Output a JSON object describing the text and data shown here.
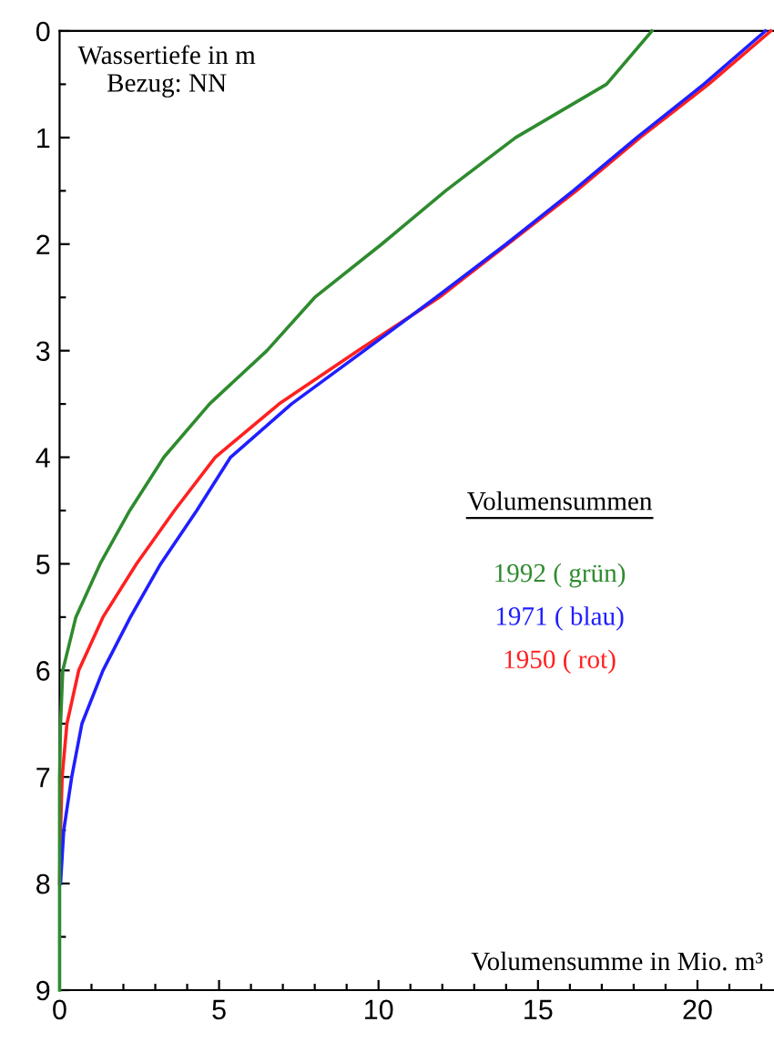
{
  "chart_data": {
    "type": "line",
    "xlabel": "Volumensumme in Mio. m³",
    "ylabel": "Wassertiefe in m\nBezug: NN",
    "legend_title": "Volumensummen",
    "legend": "right",
    "xlim": [
      0,
      22.4
    ],
    "ylim": [
      9,
      0
    ],
    "xticks": [
      0,
      {
        "value": 1,
        "label": null
      },
      {
        "value": 2,
        "label": null
      },
      {
        "value": 3,
        "label": null
      },
      {
        "value": 4,
        "label": null
      },
      5,
      {
        "value": 6,
        "label": null
      },
      {
        "value": 7,
        "label": null
      },
      {
        "value": 8,
        "label": null
      },
      {
        "value": 9,
        "label": null
      },
      10,
      {
        "value": 11,
        "label": null
      },
      {
        "value": 12,
        "label": null
      },
      {
        "value": 13,
        "label": null
      },
      {
        "value": 14,
        "label": null
      },
      15,
      {
        "value": 16,
        "label": null
      },
      {
        "value": 17,
        "label": null
      },
      {
        "value": 18,
        "label": null
      },
      {
        "value": 19,
        "label": null
      },
      20,
      {
        "value": 21,
        "label": null
      },
      {
        "value": 22,
        "label": null
      }
    ],
    "yticks": [
      0,
      {
        "value": 0.5,
        "label": null
      },
      1,
      {
        "value": 1.5,
        "label": null
      },
      2,
      {
        "value": 2.5,
        "label": null
      },
      3,
      {
        "value": 3.5,
        "label": null
      },
      4,
      {
        "value": 4.5,
        "label": null
      },
      5,
      {
        "value": 5.5,
        "label": null
      },
      6,
      {
        "value": 6.5,
        "label": null
      },
      7,
      {
        "value": 7.5,
        "label": null
      },
      8,
      {
        "value": 8.5,
        "label": null
      },
      9
    ],
    "line_style": "solid",
    "series": [
      {
        "name": "1992 ( grün)",
        "color": "#2e8b2e",
        "x": [
          18.57,
          17.15,
          14.3,
          12.1,
          10.1,
          8.0,
          6.5,
          4.7,
          3.27,
          2.2,
          1.27,
          0.51,
          0.1,
          0.03,
          0,
          0,
          0,
          0,
          0
        ],
        "values": [
          0,
          0.5,
          1,
          1.5,
          2,
          2.5,
          3,
          3.5,
          4,
          4.5,
          5,
          5.5,
          6,
          6.5,
          7,
          7.5,
          8,
          8.5,
          9
        ]
      },
      {
        "name": "1971 ( blau)",
        "color": "#1f1fff",
        "x": [
          22.13,
          20.2,
          18.1,
          16.1,
          14.0,
          11.8,
          9.55,
          7.27,
          5.36,
          4.3,
          3.17,
          2.22,
          1.36,
          0.7,
          0.38,
          0.13,
          0.03
        ],
        "values": [
          0,
          0.5,
          1,
          1.5,
          2,
          2.5,
          3,
          3.5,
          4,
          4.5,
          5,
          5.5,
          6,
          6.5,
          7,
          7.5,
          8
        ]
      },
      {
        "name": "1950 ( rot)",
        "color": "#ff2020",
        "x": [
          22.3,
          20.35,
          18.2,
          16.2,
          14.05,
          11.9,
          9.35,
          6.88,
          4.88,
          3.6,
          2.41,
          1.36,
          0.6,
          0.23,
          0.08,
          0.03,
          0
        ],
        "values": [
          0,
          0.5,
          1,
          1.5,
          2,
          2.5,
          3,
          3.5,
          4,
          4.5,
          5,
          5.5,
          6,
          6.5,
          7,
          7.5,
          8
        ]
      }
    ]
  }
}
